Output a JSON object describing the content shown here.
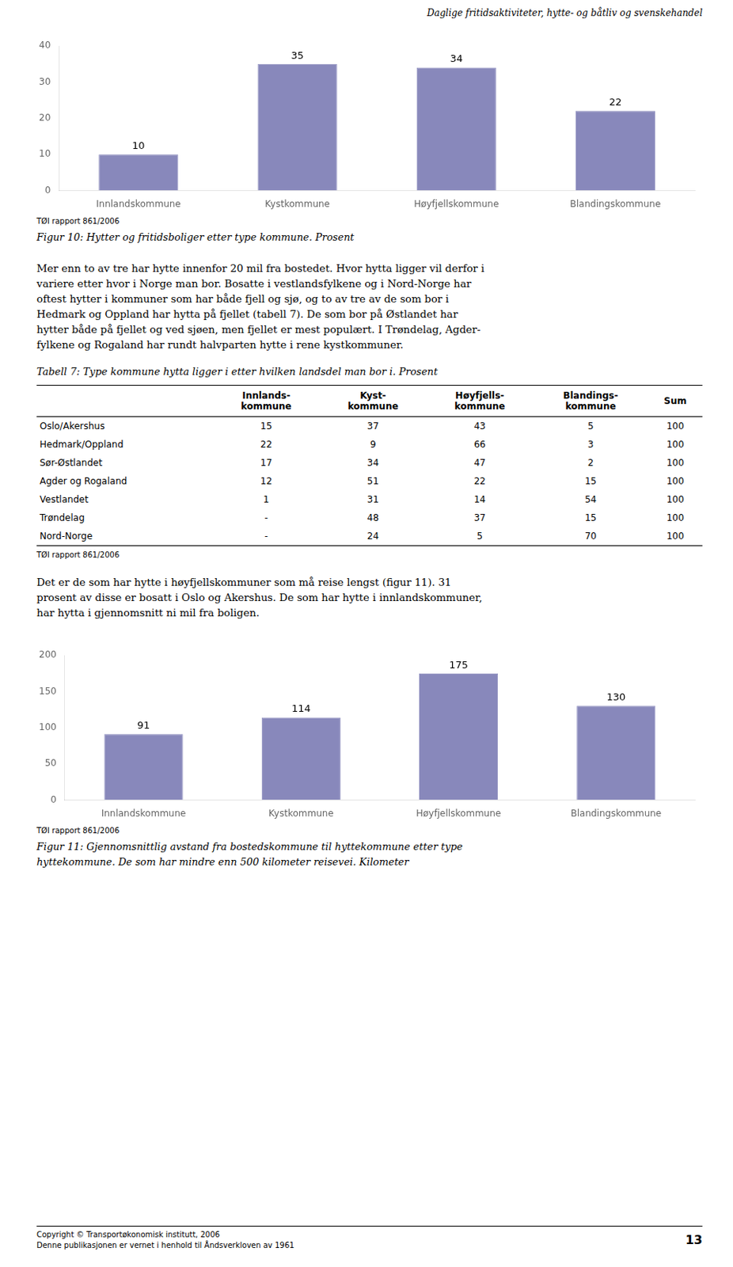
{
  "page_title": "Daglige fritidsaktiviteter, hytte- og båtliv og svenskehandel",
  "chart_data": [
    {
      "type": "bar",
      "title": [
        "Figur 10: Hytter og fritidsboliger etter type kommune. Prosent"
      ],
      "subtitle": "TØI rapport 861/2006",
      "categories": [
        "Innlandskommune",
        "Kystkommune",
        "Høyfjellskommune",
        "Blandingskommune"
      ],
      "values": [
        10,
        35,
        34,
        22
      ],
      "color": "#8888bb",
      "ylim": [
        0,
        40
      ],
      "yticks": [
        0,
        10,
        20,
        30,
        40
      ],
      "grid": false,
      "data_labels": true
    },
    {
      "type": "bar",
      "title": [
        "Figur 11: Gjennomsnittlig avstand fra bostedskommune til hyttekommune etter type",
        "hyttekommune. De som har mindre enn 500 kilometer reisevei. Kilometer"
      ],
      "subtitle": "TØI rapport 861/2006",
      "categories": [
        "Innlandskommune",
        "Kystkommune",
        "Høyfjellskommune",
        "Blandingskommune"
      ],
      "values": [
        91,
        114,
        175,
        130
      ],
      "color": "#8888bb",
      "ylim": [
        0,
        200
      ],
      "yticks": [
        0,
        50,
        100,
        150,
        200
      ],
      "grid": false,
      "data_labels": true
    }
  ],
  "body1_lines": [
    "Mer enn to av tre har hytte innenfor 20 mil fra bostedet. Hvor hytta ligger vil derfor i",
    "variere etter hvor i Norge man bor. Bosatte i vestlandsfylkene og i Nord-Norge har",
    "oftest hytter i kommuner som har både fjell og sjø, og to av tre av de som bor i",
    "Hedmark og Oppland har hytta på fjellet (tabell 7). De som bor på Østlandet har",
    "hytter både på fjellet og ved sjøen, men fjellet er mest populært. I Trøndelag, Agder-",
    "fylkene og Rogaland har rundt halvparten hytte i rene kystkommuner."
  ],
  "table": {
    "title": "Tabell 7: Type kommune hytta ligger i etter hvilken landsdel man bor i. Prosent",
    "columns": [
      "Innlands-\nkommune",
      "Kyst-\nkommune",
      "Høyfjells-\nkommune",
      "Blandings-\nkommune",
      "Sum"
    ],
    "rows": [
      [
        "Oslo/Akershus",
        "15",
        "37",
        "43",
        "5",
        "100"
      ],
      [
        "Hedmark/Oppland",
        "22",
        "9",
        "66",
        "3",
        "100"
      ],
      [
        "Sør-Østlandet",
        "17",
        "34",
        "47",
        "2",
        "100"
      ],
      [
        "Agder og Rogaland",
        "12",
        "51",
        "22",
        "15",
        "100"
      ],
      [
        "Vestlandet",
        "1",
        "31",
        "14",
        "54",
        "100"
      ],
      [
        "Trøndelag",
        "-",
        "48",
        "37",
        "15",
        "100"
      ],
      [
        "Nord-Norge",
        "-",
        "24",
        "5",
        "70",
        "100"
      ]
    ],
    "note": "TØI rapport 861/2006"
  },
  "body2_lines": [
    "Det er de som har hytte i høyfjellskommuner som må reise lengst (figur 11). 31",
    "prosent av disse er bosatt i Oslo og Akershus. De som har hytte i innlandskommuner,",
    "har hytta i gjennomsnitt ni mil fra boligen."
  ],
  "footer": {
    "copyright": "Copyright © Transportøkonomisk institutt, 2006",
    "law": "Denne publikasjonen er vernet i henhold til Åndsverkloven av 1961",
    "page_number": "13"
  }
}
